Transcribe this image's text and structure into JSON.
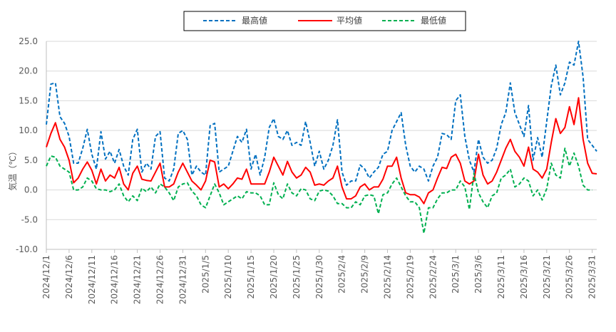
{
  "chart_data": {
    "type": "line",
    "ylabel": "気温（℃）",
    "ylim": [
      -10,
      25
    ],
    "yticks": [
      "25.0",
      "20.0",
      "15.0",
      "10.0",
      "5.0",
      "0.0",
      "-5.0",
      "-10.0"
    ],
    "grid": true,
    "legend_position": "top-center",
    "x_tick_labels": [
      "2024/12/1",
      "2024/12/6",
      "2024/12/11",
      "2024/12/16",
      "2024/12/21",
      "2024/12/26",
      "2024/12/31",
      "2025/1/5",
      "2025/1/10",
      "2025/1/15",
      "2025/1/20",
      "2025/1/25",
      "2025/1/30",
      "2025/2/4",
      "2025/2/9",
      "2025/2/14",
      "2025/2/19",
      "2025/2/24",
      "2025/3/1",
      "2025/3/6",
      "2025/3/11",
      "2025/3/16",
      "2025/3/21",
      "2025/3/26",
      "2025/3/31"
    ],
    "series": [
      {
        "name": "最高値",
        "color": "#0070c0",
        "dash": "dashed",
        "values": [
          11.0,
          17.8,
          18.0,
          12.3,
          11.2,
          9.0,
          4.5,
          4.5,
          7.0,
          10.2,
          6.0,
          3.5,
          9.8,
          5.2,
          6.5,
          4.5,
          6.8,
          4.0,
          2.5,
          8.5,
          10.2,
          3.0,
          4.5,
          3.5,
          9.0,
          9.8,
          2.0,
          1.5,
          3.5,
          9.5,
          10.0,
          8.5,
          2.5,
          4.0,
          3.0,
          2.5,
          10.8,
          11.2,
          3.0,
          3.5,
          4.0,
          6.5,
          9.0,
          8.0,
          10.2,
          3.5,
          6.0,
          2.5,
          5.5,
          10.5,
          12.0,
          9.0,
          8.5,
          10.0,
          7.5,
          8.0,
          7.5,
          11.5,
          8.0,
          4.0,
          6.5,
          3.5,
          5.0,
          7.5,
          11.8,
          3.0,
          0.8,
          1.5,
          1.5,
          4.2,
          3.5,
          2.0,
          3.0,
          3.8,
          6.0,
          6.5,
          10.0,
          11.5,
          13.0,
          7.5,
          4.0,
          3.0,
          4.0,
          3.5,
          1.5,
          4.0,
          5.5,
          9.5,
          9.3,
          8.5,
          15.0,
          16.0,
          9.0,
          5.0,
          3.0,
          8.5,
          5.5,
          4.5,
          5.0,
          7.0,
          11.0,
          13.0,
          18.0,
          13.0,
          11.0,
          9.0,
          14.2,
          5.0,
          8.8,
          5.5,
          11.5,
          17.5,
          21.0,
          16.0,
          18.0,
          21.5,
          21.0,
          25.0,
          19.0,
          8.5,
          7.5,
          6.5
        ]
      },
      {
        "name": "平均値",
        "color": "#ff0000",
        "dash": "solid",
        "values": [
          7.2,
          9.5,
          11.3,
          8.5,
          7.2,
          5.0,
          1.2,
          2.0,
          3.5,
          4.7,
          3.3,
          1.0,
          3.5,
          1.5,
          2.5,
          2.0,
          3.8,
          1.0,
          0.0,
          2.8,
          4.0,
          1.8,
          1.6,
          1.5,
          3.0,
          4.5,
          0.5,
          0.5,
          1.0,
          3.0,
          4.5,
          3.0,
          1.5,
          0.8,
          0.0,
          1.5,
          5.0,
          4.7,
          0.5,
          1.0,
          0.2,
          1.0,
          2.0,
          1.8,
          3.5,
          1.0,
          1.0,
          1.0,
          1.0,
          3.0,
          5.5,
          4.0,
          2.5,
          4.8,
          3.0,
          2.0,
          2.5,
          3.8,
          3.0,
          0.8,
          1.0,
          0.8,
          1.5,
          2.0,
          4.0,
          0.5,
          -1.5,
          -1.5,
          -1.0,
          0.5,
          1.0,
          0.0,
          0.5,
          0.5,
          1.8,
          4.0,
          4.0,
          5.5,
          2.0,
          -0.5,
          -0.8,
          -0.8,
          -1.2,
          -2.3,
          -0.5,
          0.0,
          2.0,
          3.8,
          3.6,
          5.5,
          6.0,
          4.5,
          1.5,
          1.0,
          1.5,
          6.0,
          2.5,
          1.0,
          1.5,
          3.0,
          5.0,
          7.0,
          8.5,
          6.5,
          5.5,
          4.0,
          7.2,
          3.5,
          3.0,
          2.0,
          3.5,
          8.0,
          12.0,
          9.5,
          10.5,
          14.0,
          11.0,
          15.5,
          8.5,
          4.5,
          2.8,
          2.7
        ]
      },
      {
        "name": "最低値",
        "color": "#00b050",
        "dash": "dashed",
        "values": [
          4.0,
          5.7,
          5.5,
          4.0,
          3.5,
          3.0,
          0.0,
          0.0,
          0.5,
          2.0,
          1.5,
          0.2,
          0.0,
          0.0,
          -0.3,
          0.0,
          1.0,
          -1.0,
          -2.0,
          -1.0,
          -1.8,
          0.3,
          -0.3,
          0.5,
          -0.5,
          1.0,
          0.5,
          -0.5,
          -1.8,
          0.5,
          1.0,
          1.2,
          -0.2,
          -1.0,
          -2.5,
          -3.0,
          -1.0,
          1.0,
          -0.5,
          -2.5,
          -2.0,
          -1.5,
          -1.0,
          -1.5,
          -0.3,
          -0.5,
          -0.5,
          -1.0,
          -2.5,
          -2.5,
          1.2,
          -0.8,
          -1.5,
          1.0,
          -0.5,
          -1.0,
          0.2,
          0.0,
          -1.5,
          -1.8,
          -0.2,
          0.0,
          -0.2,
          -1.0,
          -2.3,
          -2.3,
          -3.0,
          -3.0,
          -2.0,
          -2.5,
          -1.0,
          -0.8,
          -1.0,
          -4.0,
          -0.8,
          -0.5,
          1.0,
          2.0,
          0.5,
          -1.0,
          -2.0,
          -2.0,
          -3.0,
          -7.3,
          -3.0,
          -3.0,
          -1.5,
          -0.5,
          -0.5,
          0.0,
          0.0,
          1.5,
          0.5,
          -3.3,
          2.8,
          -0.5,
          -2.0,
          -3.0,
          -1.0,
          -0.5,
          2.0,
          2.5,
          3.5,
          0.5,
          1.0,
          2.0,
          1.5,
          -1.0,
          0.0,
          -1.7,
          0.2,
          4.5,
          2.5,
          2.0,
          7.0,
          4.0,
          6.2,
          4.0,
          0.8,
          0.0,
          0.0
        ]
      }
    ]
  }
}
